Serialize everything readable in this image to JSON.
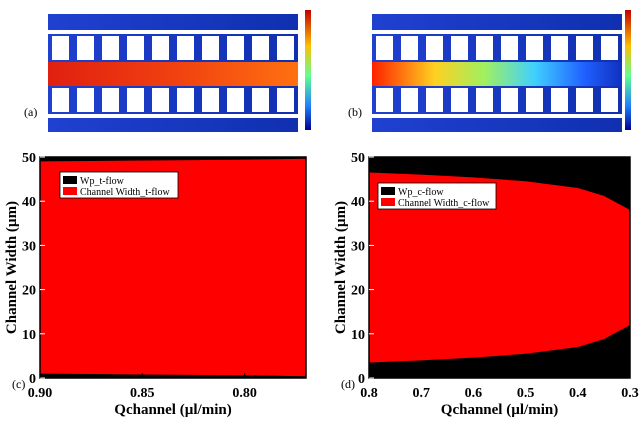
{
  "images": [
    {
      "label": "(a)"
    },
    {
      "label": "(b)"
    }
  ],
  "chart_data": [
    {
      "type": "area",
      "panel_label": "(c)",
      "xlabel": "Qchannel (µl/min)",
      "ylabel": "Channel Width (µm)",
      "x": [
        0.9,
        0.875,
        0.85,
        0.825,
        0.8,
        0.785,
        0.77
      ],
      "series": [
        {
          "name": "Wp_t-flow",
          "color": "#000000",
          "values": [
            1.0,
            0.9,
            0.8,
            0.7,
            0.6,
            0.5,
            0.4
          ]
        },
        {
          "name": "Channel Width_t-flow",
          "color": "#ff0000",
          "values": [
            48,
            48.2,
            48.4,
            48.6,
            48.8,
            49,
            49.2
          ]
        }
      ],
      "xlim": [
        0.9,
        0.77
      ],
      "xticks": [
        {
          "value": 0.9,
          "label": "0.90"
        },
        0.85,
        {
          "value": 0.8,
          "label": "0.80"
        }
      ],
      "ylim": [
        0,
        50
      ],
      "yticks": [
        0,
        10,
        20,
        30,
        40,
        50
      ],
      "plot_background": "#000000",
      "legend": "top-left"
    },
    {
      "type": "area",
      "panel_label": "(d)",
      "xlabel": "Qchannel (µl/min)",
      "ylabel": "Channel Width (µm)",
      "x": [
        0.8,
        0.7,
        0.6,
        0.5,
        0.4,
        0.35,
        0.3
      ],
      "series": [
        {
          "name": "Wp_c-flow",
          "color": "#000000",
          "values": [
            3.5,
            4.0,
            4.6,
            5.5,
            7.0,
            8.8,
            12
          ]
        },
        {
          "name": "Channel Width_c-flow",
          "color": "#ff0000",
          "values": [
            43,
            42,
            40.8,
            39,
            36,
            32.4,
            26
          ]
        }
      ],
      "xlim": [
        0.8,
        0.3
      ],
      "xticks": [
        0.8,
        0.7,
        0.6,
        0.5,
        0.4,
        0.3
      ],
      "ylim": [
        0,
        50
      ],
      "yticks": [
        0,
        10,
        20,
        30,
        40,
        50
      ],
      "plot_background": "#000000",
      "legend": "top-left"
    }
  ]
}
